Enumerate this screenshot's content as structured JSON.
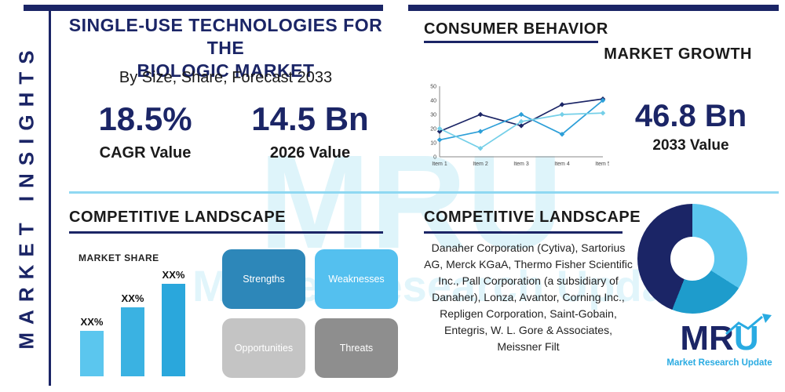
{
  "watermark": {
    "text": "MRU",
    "tagline": "Market Research Update"
  },
  "sidebar": {
    "vertical_title": "MARKET INSIGHTS"
  },
  "top_left": {
    "title_line1": "SINGLE-USE TECHNOLOGIES FOR THE",
    "title_line2": "BIOLOGIC MARKET",
    "subtitle": "By Size, Share, Forecast 2033",
    "stats": [
      {
        "value": "18.5%",
        "label": "CAGR Value"
      },
      {
        "value": "14.5 Bn",
        "label": "2026 Value"
      }
    ]
  },
  "top_right": {
    "heading": "CONSUMER BEHAVIOR",
    "subheading": "MARKET GROWTH",
    "stat_value": "46.8 Bn",
    "stat_label": "2033 Value"
  },
  "chart_data": [
    {
      "type": "line",
      "categories": [
        "Item 1",
        "Item 2",
        "Item 3",
        "Item 4",
        "Item 5"
      ],
      "series": [
        {
          "name": "series-navy",
          "color": "#1b2566",
          "values": [
            18,
            30,
            22,
            37,
            41
          ]
        },
        {
          "name": "series-blue",
          "color": "#2d9fd8",
          "values": [
            12,
            18,
            30,
            16,
            40
          ]
        },
        {
          "name": "series-lightblue",
          "color": "#74cfe8",
          "values": [
            20,
            6,
            25,
            30,
            31
          ]
        }
      ],
      "ylim": [
        0,
        50
      ],
      "yticks": [
        0,
        10,
        20,
        30,
        40,
        50
      ],
      "grid": false,
      "legend": "none"
    },
    {
      "type": "bar",
      "title": "MARKET SHARE",
      "categories": [
        "XX%",
        "XX%",
        "XX%"
      ],
      "values": [
        36,
        55,
        74
      ],
      "labels": [
        "XX%",
        "XX%",
        "XX%"
      ],
      "colors": [
        "#5bc6ee",
        "#3ab2e2",
        "#2aa7dc"
      ],
      "ylim": [
        0,
        100
      ]
    },
    {
      "type": "pie",
      "title": "",
      "slices": [
        {
          "label": "segment-light-blue",
          "value": 34,
          "color": "#5bc6ee"
        },
        {
          "label": "segment-teal",
          "value": 22,
          "color": "#1e9ccc"
        },
        {
          "label": "segment-navy",
          "value": 44,
          "color": "#1b2566"
        }
      ]
    }
  ],
  "bottom_left": {
    "heading": "COMPETITIVE LANDSCAPE",
    "swot": [
      {
        "label": "Strengths",
        "color": "#2d87b9"
      },
      {
        "label": "Weaknesses",
        "color": "#54c0ef"
      },
      {
        "label": "Opportunities",
        "color": "#c4c4c4"
      },
      {
        "label": "Threats",
        "color": "#8e8e8e"
      }
    ]
  },
  "bottom_right": {
    "heading": "COMPETITIVE LANDSCAPE",
    "companies_text": "Danaher Corporation (Cytiva), Sartorius AG, Merck KGaA, Thermo Fisher Scientific Inc., Pall Corporation (a subsidiary of Danaher), Lonza, Avantor, Corning Inc., Repligen Corporation, Saint-Gobain, Entegris, W. L. Gore & Associates, Meissner Filt"
  },
  "logo": {
    "letters": [
      "M",
      "R",
      "U"
    ],
    "tagline": "Market Research Update"
  }
}
